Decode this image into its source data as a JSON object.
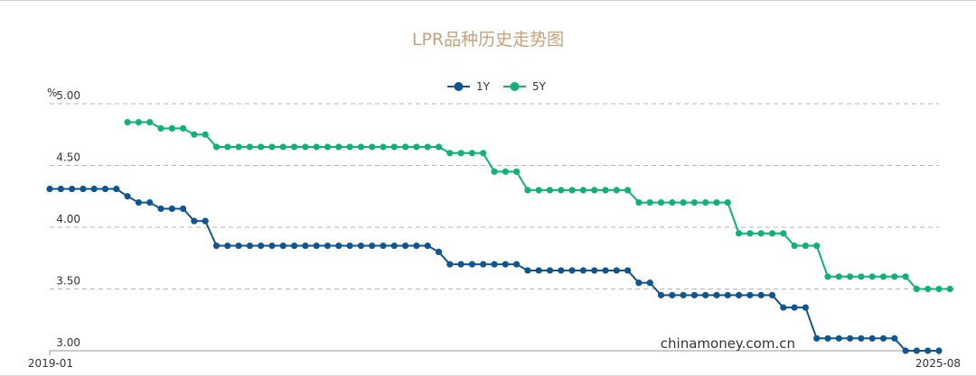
{
  "chart_data": {
    "type": "line",
    "title": "LPR品种历史走势图",
    "ylabel": "%",
    "ylim": [
      3.0,
      5.0
    ],
    "yticks": [
      "5.00",
      "4.50",
      "4.00",
      "3.50",
      "3.00"
    ],
    "x_start_label": "2019-01",
    "x_end_label": "2025-08",
    "grid": true,
    "legend": "top-center",
    "watermark": "chinamoney.com.cn",
    "series": [
      {
        "name": "1Y",
        "color": "#0f5591",
        "values": [
          4.31,
          4.31,
          4.31,
          4.31,
          4.31,
          4.31,
          4.31,
          4.25,
          4.2,
          4.2,
          4.15,
          4.15,
          4.15,
          4.05,
          4.05,
          3.85,
          3.85,
          3.85,
          3.85,
          3.85,
          3.85,
          3.85,
          3.85,
          3.85,
          3.85,
          3.85,
          3.85,
          3.85,
          3.85,
          3.85,
          3.85,
          3.85,
          3.85,
          3.85,
          3.85,
          3.8,
          3.7,
          3.7,
          3.7,
          3.7,
          3.7,
          3.7,
          3.7,
          3.65,
          3.65,
          3.65,
          3.65,
          3.65,
          3.65,
          3.65,
          3.65,
          3.65,
          3.65,
          3.55,
          3.55,
          3.45,
          3.45,
          3.45,
          3.45,
          3.45,
          3.45,
          3.45,
          3.45,
          3.45,
          3.45,
          3.45,
          3.35,
          3.35,
          3.35,
          3.1,
          3.1,
          3.1,
          3.1,
          3.1,
          3.1,
          3.1,
          3.1,
          3.0,
          3.0,
          3.0,
          3.0
        ]
      },
      {
        "name": "5Y",
        "color": "#10b177",
        "values": [
          null,
          null,
          null,
          null,
          null,
          null,
          null,
          4.85,
          4.85,
          4.85,
          4.8,
          4.8,
          4.8,
          4.75,
          4.75,
          4.65,
          4.65,
          4.65,
          4.65,
          4.65,
          4.65,
          4.65,
          4.65,
          4.65,
          4.65,
          4.65,
          4.65,
          4.65,
          4.65,
          4.65,
          4.65,
          4.65,
          4.65,
          4.65,
          4.65,
          4.65,
          4.6,
          4.6,
          4.6,
          4.6,
          4.45,
          4.45,
          4.45,
          4.3,
          4.3,
          4.3,
          4.3,
          4.3,
          4.3,
          4.3,
          4.3,
          4.3,
          4.3,
          4.2,
          4.2,
          4.2,
          4.2,
          4.2,
          4.2,
          4.2,
          4.2,
          4.2,
          3.95,
          3.95,
          3.95,
          3.95,
          3.95,
          3.85,
          3.85,
          3.85,
          3.6,
          3.6,
          3.6,
          3.6,
          3.6,
          3.6,
          3.6,
          3.6,
          3.5,
          3.5,
          3.5,
          3.5
        ]
      }
    ]
  }
}
